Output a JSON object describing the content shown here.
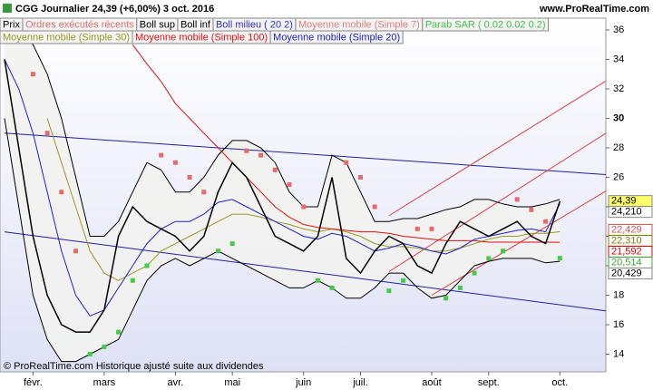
{
  "chart_data": {
    "type": "line",
    "title": "CGG   Journalier    24,39 (+6,00%)    3 oct. 2016",
    "site": "www.ProRealTime.com",
    "footer": "© ProRealTime.com  Historique ajusté suite aux dividendes",
    "legend": [
      [
        {
          "name": "Prix",
          "color": "#000000"
        },
        {
          "name": "Ordres exécutés récents",
          "color": "#e07070"
        },
        {
          "name": "Boll sup",
          "color": "#000000"
        },
        {
          "name": "Boll inf",
          "color": "#000000"
        },
        {
          "name": "Boll milieu ( 20 2)",
          "color": "#3030d0"
        },
        {
          "name": "Moyenne mobile (Simple 7)",
          "color": "#e08080"
        },
        {
          "name": "Parab SAR ( 0.02 0.02 0.2)",
          "color": "#40c040"
        }
      ],
      [
        {
          "name": "Moyenne mobile (Simple 30)",
          "color": "#9a9a20"
        },
        {
          "name": "Moyenne mobile (Simple 100)",
          "color": "#e01010"
        },
        {
          "name": "Moyenne mobile (Simple 20)",
          "color": "#2020d0"
        }
      ]
    ],
    "categories": [
      null,
      null,
      "févr.",
      null,
      null,
      null,
      null,
      "mars",
      null,
      null,
      null,
      null,
      "avr.",
      null,
      null,
      null,
      "mai",
      null,
      null,
      null,
      null,
      "juin",
      null,
      null,
      null,
      "juil.",
      null,
      null,
      null,
      null,
      "août",
      null,
      null,
      null,
      "sept.",
      null,
      null,
      null,
      null,
      "oct."
    ],
    "series": [
      {
        "style": "band-upper",
        "color": "#000000",
        "values": [
          36,
          36,
          35,
          33,
          30,
          26,
          22,
          22,
          23,
          25,
          27,
          26.5,
          25,
          25,
          26,
          27.5,
          28.5,
          28.5,
          28,
          27,
          25,
          24,
          24,
          27.5,
          27,
          25,
          23,
          23,
          23.2,
          23.2,
          23.5,
          23.8,
          24,
          24.5,
          24.5,
          24.2,
          24,
          24,
          24.2,
          24.5
        ]
      },
      {
        "style": "band-lower",
        "color": "#000000",
        "values": [
          30,
          24,
          18,
          15,
          13.5,
          13.5,
          14,
          14.5,
          15,
          17,
          19,
          20,
          20.5,
          20,
          20.5,
          21,
          20.5,
          20,
          19.5,
          19,
          18.5,
          18.5,
          19,
          18.5,
          17.8,
          17.8,
          18.5,
          19.5,
          19.5,
          18.5,
          17.8,
          18,
          19,
          20,
          20.3,
          20.5,
          20.5,
          20.5,
          20.2,
          20.3
        ]
      },
      {
        "style": "line",
        "color": "#9a9a20",
        "values": [
          null,
          null,
          null,
          30,
          27,
          24,
          21,
          19.5,
          19,
          19.5,
          20,
          21,
          21.5,
          22,
          22.5,
          23,
          23.5,
          23.5,
          23.3,
          23,
          22.8,
          22.5,
          22.3,
          22.5,
          22.3,
          22,
          21.5,
          21.3,
          21.3,
          21.2,
          21,
          21,
          21.2,
          21.5,
          21.8,
          22,
          22,
          22.2,
          22.2,
          22.31
        ]
      },
      {
        "style": "line",
        "color": "#e01010",
        "values": [
          null,
          null,
          null,
          null,
          null,
          null,
          null,
          null,
          null,
          35,
          33.7,
          32.5,
          31,
          30,
          29,
          28,
          27,
          26,
          25,
          24,
          23.3,
          22.8,
          22.6,
          22.5,
          22.4,
          22.3,
          22.3,
          22.2,
          22,
          21.9,
          21.8,
          21.7,
          21.7,
          21.7,
          21.6,
          21.6,
          21.6,
          21.6,
          21.6,
          21.592
        ]
      },
      {
        "style": "line",
        "color": "#2020d0",
        "values": [
          34,
          32,
          29,
          25,
          21,
          18,
          16.6,
          17,
          18.5,
          20,
          21.5,
          22.5,
          23,
          23,
          23.5,
          24.3,
          24.5,
          24,
          23.5,
          23,
          22.5,
          22,
          21.8,
          22.2,
          22,
          21.5,
          21,
          21.2,
          21.5,
          21.3,
          21,
          20.8,
          21.2,
          21.8,
          22,
          22.2,
          22.4,
          22.5,
          22.3,
          24.21
        ]
      },
      {
        "style": "line",
        "color": "#000000",
        "values": [
          34,
          28,
          22,
          18,
          16,
          15.5,
          15.5,
          17,
          22,
          24,
          23,
          22.5,
          22,
          21,
          22,
          25,
          27,
          26,
          24,
          22,
          21.5,
          21,
          22,
          26,
          20.5,
          19.5,
          21,
          22,
          21.5,
          20,
          19.5,
          21.5,
          23,
          22.5,
          22,
          22.5,
          23,
          22,
          21.5,
          24.39
        ]
      },
      {
        "style": "dots",
        "color": "#e86a6a",
        "color_below": "#44cc44",
        "values": [
          36,
          36,
          33,
          29,
          25,
          21,
          14,
          14.5,
          15.5,
          19,
          20,
          27.5,
          27,
          26,
          25,
          21,
          21.5,
          27.8,
          27.5,
          26.5,
          25.5,
          24,
          19,
          18.5,
          27,
          26,
          24,
          18.3,
          19,
          22.5,
          22.5,
          17.8,
          18.5,
          19.5,
          20.5,
          21,
          24.5,
          23.8,
          23,
          20.514
        ]
      }
    ],
    "trendlines": [
      {
        "color": "#2020a0",
        "points": [
          [
            0,
            29.0
          ],
          [
            39,
            26.4
          ]
        ]
      },
      {
        "color": "#2020a0",
        "points": [
          [
            0,
            22.3
          ],
          [
            39,
            17.35
          ]
        ]
      },
      {
        "color": "#e04040",
        "points": [
          [
            27,
            23.4
          ],
          [
            39,
            30.6
          ]
        ]
      },
      {
        "color": "#e04040",
        "points": [
          [
            27,
            19.6
          ],
          [
            39,
            27.0
          ]
        ]
      },
      {
        "color": "#e04040",
        "points": [
          [
            30,
            18.0
          ],
          [
            39,
            23.2
          ]
        ]
      }
    ],
    "ylim": [
      12.8,
      36.8
    ],
    "yticks": [
      14,
      16,
      18,
      20,
      22,
      24,
      26,
      28,
      30,
      32,
      34,
      36
    ],
    "ytick_bold": 30,
    "price_tags": [
      {
        "value": 24.39,
        "label": "24,39",
        "bg": "#ffff66",
        "color": "#000000"
      },
      {
        "value": 24.21,
        "label": "24,210",
        "bg": "#ffffff",
        "color": "#000000"
      },
      {
        "value": 22.429,
        "label": "22,429",
        "bg": "#ffffff",
        "color": "#e05050"
      },
      {
        "value": 22.31,
        "label": "22,310",
        "bg": "#ffffff",
        "color": "#808000"
      },
      {
        "value": 21.592,
        "label": "21,592",
        "bg": "#ffffff",
        "color": "#e00000"
      },
      {
        "value": 20.514,
        "label": "20,514",
        "bg": "#ffffff",
        "color": "#33aa33"
      },
      {
        "value": 20.429,
        "label": "20,429",
        "bg": "#ffffff",
        "color": "#000000"
      }
    ]
  }
}
